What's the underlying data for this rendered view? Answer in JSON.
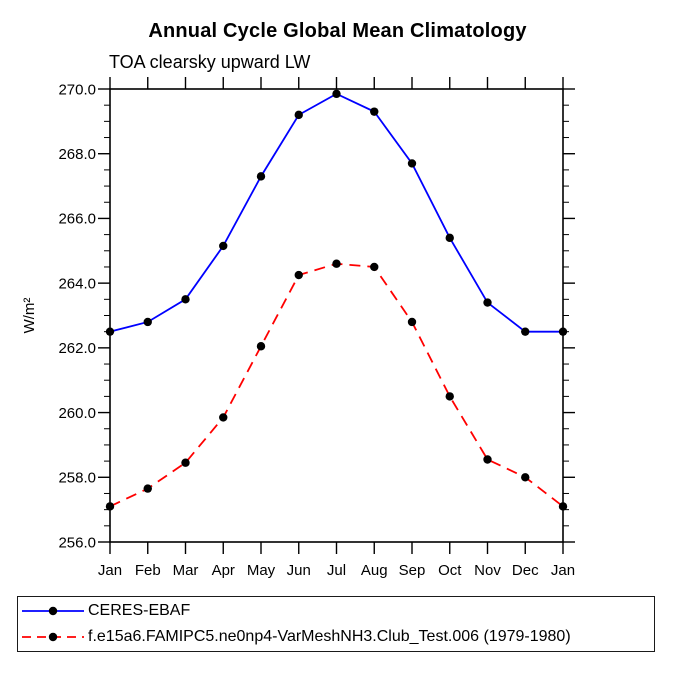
{
  "chart_data": {
    "type": "line",
    "title": "Annual Cycle Global Mean Climatology",
    "subtitle": "TOA clearsky upward LW",
    "xlabel": "",
    "ylabel": "W/m²",
    "categories": [
      "Jan",
      "Feb",
      "Mar",
      "Apr",
      "May",
      "Jun",
      "Jul",
      "Aug",
      "Sep",
      "Oct",
      "Nov",
      "Dec",
      "Jan"
    ],
    "ylim": [
      256.0,
      270.0
    ],
    "ytick_major_interval": 2.0,
    "ytick_minor_interval": 0.5,
    "ytick_label_format": "one_decimal",
    "grid": false,
    "legend_position": "bottom-box",
    "series": [
      {
        "name": "CERES-EBAF",
        "color": "#0000ff",
        "line_style": "solid",
        "marker": "filled-circle",
        "marker_color": "#000000",
        "values": [
          262.5,
          262.8,
          263.5,
          265.15,
          267.3,
          269.2,
          269.85,
          269.3,
          267.7,
          265.4,
          263.4,
          262.5,
          262.5
        ]
      },
      {
        "name": "f.e15a6.FAMIPC5.ne0np4-VarMeshNH3.Club_Test.006 (1979-1980)",
        "color": "#ff0000",
        "line_style": "dashed",
        "marker": "filled-circle",
        "marker_color": "#000000",
        "values": [
          257.1,
          257.65,
          258.45,
          259.85,
          262.05,
          264.25,
          264.6,
          264.5,
          262.8,
          260.5,
          258.55,
          258.0,
          257.1
        ]
      }
    ]
  },
  "colors": {
    "background": "#ffffff",
    "axis": "#000000",
    "series_1": "#0000ff",
    "series_2": "#ff0000",
    "marker": "#000000"
  }
}
